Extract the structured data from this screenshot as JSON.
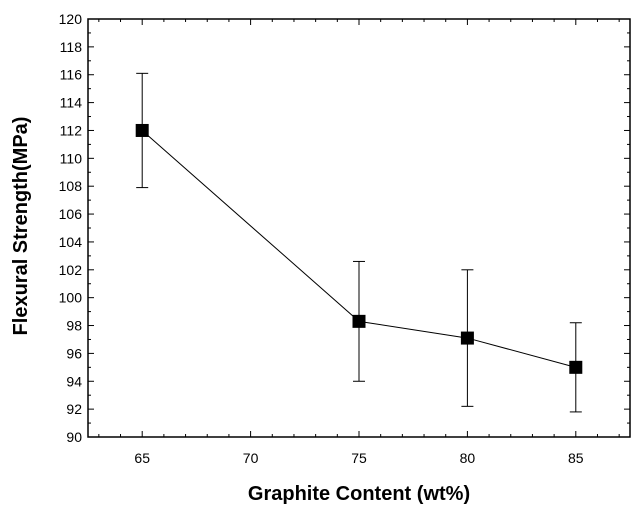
{
  "chart_data": {
    "type": "line",
    "title": "",
    "xlabel": "Graphite Content (wt%)",
    "ylabel": "Flexural Strength(MPa)",
    "xlim": [
      62.5,
      87.5
    ],
    "ylim": [
      90,
      120
    ],
    "x_ticks": [
      65,
      70,
      75,
      80,
      85
    ],
    "y_ticks": [
      90,
      92,
      94,
      96,
      98,
      100,
      102,
      104,
      106,
      108,
      110,
      112,
      114,
      116,
      118,
      120
    ],
    "grid": false,
    "legend": false,
    "marker": "filled-square",
    "series": [
      {
        "x": [
          65,
          75,
          80,
          85
        ],
        "y": [
          112.0,
          98.3,
          97.1,
          95.0
        ],
        "y_err_upper": [
          116.1,
          102.6,
          102.0,
          98.2
        ],
        "y_err_lower": [
          107.9,
          94.0,
          92.2,
          91.8
        ]
      }
    ]
  }
}
